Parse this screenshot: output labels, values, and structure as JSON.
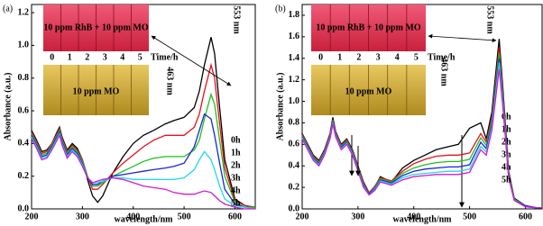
{
  "chart_data": [
    {
      "type": "line",
      "panel_label": "(a)",
      "xlabel": "wavelength/nm",
      "ylabel": "Absorbance (a.u.)",
      "xlim": [
        200,
        640
      ],
      "ylim": [
        0,
        1.25
      ],
      "xticks": [
        200,
        300,
        400,
        500,
        600
      ],
      "yticks": [
        {
          "value": 0,
          "label": "0.0"
        },
        0.2,
        0.4,
        0.6,
        0.8,
        {
          "value": 1,
          "label": "1.0"
        },
        1.2
      ],
      "annotations": [
        "553 nm",
        "463 nm"
      ],
      "inset": {
        "top_label": "10 ppm RhB + 10 ppm MO",
        "bottom_label": "10 ppm MO",
        "time_labels": [
          "0",
          "1",
          "2",
          "3",
          "4",
          "5"
        ],
        "time_title": "Time/h"
      },
      "x": [
        200,
        210,
        220,
        230,
        240,
        250,
        255,
        260,
        270,
        280,
        290,
        300,
        310,
        320,
        330,
        340,
        360,
        380,
        400,
        420,
        440,
        463,
        480,
        500,
        520,
        530,
        540,
        553,
        560,
        570,
        580,
        600,
        620,
        640
      ],
      "series": [
        {
          "name": "0h",
          "color": "#000000",
          "values": [
            0.48,
            0.42,
            0.35,
            0.36,
            0.4,
            0.47,
            0.5,
            0.44,
            0.36,
            0.4,
            0.37,
            0.3,
            0.18,
            0.08,
            0.04,
            0.08,
            0.22,
            0.32,
            0.4,
            0.45,
            0.48,
            0.52,
            0.54,
            0.56,
            0.62,
            0.72,
            0.88,
            1.05,
            0.95,
            0.62,
            0.3,
            0.06,
            0.02,
            0.01
          ]
        },
        {
          "name": "1h",
          "color": "#e8101a",
          "values": [
            0.47,
            0.41,
            0.34,
            0.35,
            0.4,
            0.46,
            0.49,
            0.43,
            0.35,
            0.39,
            0.36,
            0.3,
            0.2,
            0.12,
            0.12,
            0.15,
            0.22,
            0.28,
            0.33,
            0.38,
            0.42,
            0.45,
            0.45,
            0.45,
            0.5,
            0.58,
            0.72,
            0.88,
            0.8,
            0.52,
            0.25,
            0.05,
            0.02,
            0.01
          ]
        },
        {
          "name": "2h",
          "color": "#18c418",
          "values": [
            0.46,
            0.4,
            0.33,
            0.34,
            0.39,
            0.45,
            0.48,
            0.42,
            0.34,
            0.38,
            0.35,
            0.29,
            0.2,
            0.14,
            0.14,
            0.16,
            0.2,
            0.23,
            0.26,
            0.29,
            0.31,
            0.32,
            0.32,
            0.32,
            0.36,
            0.42,
            0.55,
            0.7,
            0.64,
            0.42,
            0.2,
            0.04,
            0.01,
            0.01
          ]
        },
        {
          "name": "3h",
          "color": "#1a22e0",
          "values": [
            0.45,
            0.39,
            0.32,
            0.33,
            0.38,
            0.44,
            0.47,
            0.41,
            0.33,
            0.37,
            0.34,
            0.28,
            0.19,
            0.15,
            0.15,
            0.17,
            0.2,
            0.21,
            0.22,
            0.23,
            0.24,
            0.25,
            0.26,
            0.28,
            0.38,
            0.48,
            0.58,
            0.55,
            0.45,
            0.28,
            0.12,
            0.03,
            0.01,
            0
          ]
        },
        {
          "name": "4h",
          "color": "#22d8e8",
          "values": [
            0.44,
            0.38,
            0.31,
            0.32,
            0.37,
            0.43,
            0.46,
            0.4,
            0.32,
            0.36,
            0.33,
            0.27,
            0.19,
            0.16,
            0.16,
            0.17,
            0.19,
            0.19,
            0.18,
            0.18,
            0.18,
            0.18,
            0.18,
            0.19,
            0.24,
            0.3,
            0.35,
            0.3,
            0.24,
            0.14,
            0.06,
            0.02,
            0.01,
            0
          ]
        },
        {
          "name": "5h",
          "color": "#d21ad2",
          "values": [
            0.43,
            0.37,
            0.3,
            0.31,
            0.36,
            0.42,
            0.45,
            0.39,
            0.31,
            0.35,
            0.32,
            0.26,
            0.19,
            0.16,
            0.17,
            0.18,
            0.19,
            0.18,
            0.16,
            0.14,
            0.13,
            0.12,
            0.1,
            0.09,
            0.09,
            0.1,
            0.11,
            0.1,
            0.08,
            0.05,
            0.03,
            0.01,
            0,
            0
          ]
        }
      ]
    },
    {
      "type": "line",
      "panel_label": "(b)",
      "xlabel": "wavelength/nm",
      "ylabel": "Absorbance (a.u.)",
      "xlim": [
        200,
        630
      ],
      "ylim": [
        0,
        1.9
      ],
      "xticks": [
        200,
        300,
        400,
        500,
        600
      ],
      "yticks": [
        {
          "value": 0,
          "label": "0.0"
        },
        0.2,
        0.4,
        0.6,
        0.8,
        {
          "value": 1,
          "label": "1.0"
        },
        1.2,
        1.4,
        1.6,
        1.8
      ],
      "annotations": [
        "553 nm",
        "463 nm"
      ],
      "inset": {
        "top_label": "10 ppm RhB + 10 ppm MO",
        "bottom_label": "10 ppm MO",
        "time_labels": [
          "0",
          "1",
          "2",
          "3",
          "4",
          "5"
        ],
        "time_title": "Time/h"
      },
      "x": [
        200,
        210,
        220,
        230,
        240,
        250,
        255,
        260,
        270,
        280,
        290,
        300,
        310,
        320,
        330,
        340,
        360,
        380,
        400,
        420,
        440,
        463,
        480,
        500,
        520,
        530,
        540,
        553,
        560,
        570,
        580,
        600,
        620,
        630
      ],
      "series": [
        {
          "name": "0h",
          "color": "#000000",
          "values": [
            0.7,
            0.6,
            0.5,
            0.45,
            0.55,
            0.7,
            0.85,
            0.72,
            0.6,
            0.65,
            0.55,
            0.4,
            0.25,
            0.15,
            0.2,
            0.3,
            0.25,
            0.38,
            0.45,
            0.5,
            0.55,
            0.58,
            0.6,
            0.75,
            0.8,
            0.65,
            0.9,
            1.58,
            1.1,
            0.35,
            0.1,
            0.03,
            0.01,
            0.01
          ]
        },
        {
          "name": "1h",
          "color": "#e8101a",
          "values": [
            0.69,
            0.59,
            0.49,
            0.44,
            0.54,
            0.69,
            0.83,
            0.71,
            0.59,
            0.64,
            0.54,
            0.39,
            0.24,
            0.15,
            0.21,
            0.29,
            0.26,
            0.35,
            0.42,
            0.46,
            0.49,
            0.5,
            0.5,
            0.52,
            0.7,
            0.62,
            0.85,
            1.5,
            1.05,
            0.33,
            0.09,
            0.03,
            0.01,
            0.01
          ]
        },
        {
          "name": "2h",
          "color": "#18c418",
          "values": [
            0.68,
            0.58,
            0.48,
            0.43,
            0.53,
            0.68,
            0.82,
            0.7,
            0.58,
            0.63,
            0.53,
            0.38,
            0.23,
            0.14,
            0.2,
            0.28,
            0.25,
            0.33,
            0.38,
            0.41,
            0.43,
            0.44,
            0.44,
            0.46,
            0.66,
            0.59,
            0.82,
            1.45,
            1.02,
            0.32,
            0.09,
            0.03,
            0.01,
            0.01
          ]
        },
        {
          "name": "3h",
          "color": "#1a22e0",
          "values": [
            0.67,
            0.57,
            0.47,
            0.42,
            0.52,
            0.67,
            0.81,
            0.69,
            0.57,
            0.62,
            0.52,
            0.37,
            0.22,
            0.14,
            0.19,
            0.27,
            0.24,
            0.31,
            0.35,
            0.37,
            0.38,
            0.39,
            0.39,
            0.41,
            0.62,
            0.56,
            0.79,
            1.4,
            0.99,
            0.31,
            0.08,
            0.03,
            0.01,
            0.01
          ]
        },
        {
          "name": "4h",
          "color": "#22d8e8",
          "values": [
            0.66,
            0.56,
            0.46,
            0.41,
            0.51,
            0.66,
            0.8,
            0.68,
            0.56,
            0.61,
            0.51,
            0.36,
            0.21,
            0.13,
            0.18,
            0.26,
            0.23,
            0.29,
            0.32,
            0.33,
            0.34,
            0.35,
            0.35,
            0.37,
            0.58,
            0.53,
            0.76,
            1.36,
            0.96,
            0.3,
            0.08,
            0.02,
            0.01,
            0.01
          ]
        },
        {
          "name": "5h",
          "color": "#d21ad2",
          "values": [
            0.65,
            0.55,
            0.45,
            0.4,
            0.5,
            0.65,
            0.79,
            0.67,
            0.55,
            0.6,
            0.5,
            0.35,
            0.2,
            0.13,
            0.17,
            0.25,
            0.22,
            0.27,
            0.3,
            0.31,
            0.32,
            0.32,
            0.32,
            0.34,
            0.55,
            0.5,
            0.73,
            1.3,
            0.93,
            0.29,
            0.08,
            0.02,
            0.01,
            0.01
          ]
        }
      ]
    }
  ]
}
